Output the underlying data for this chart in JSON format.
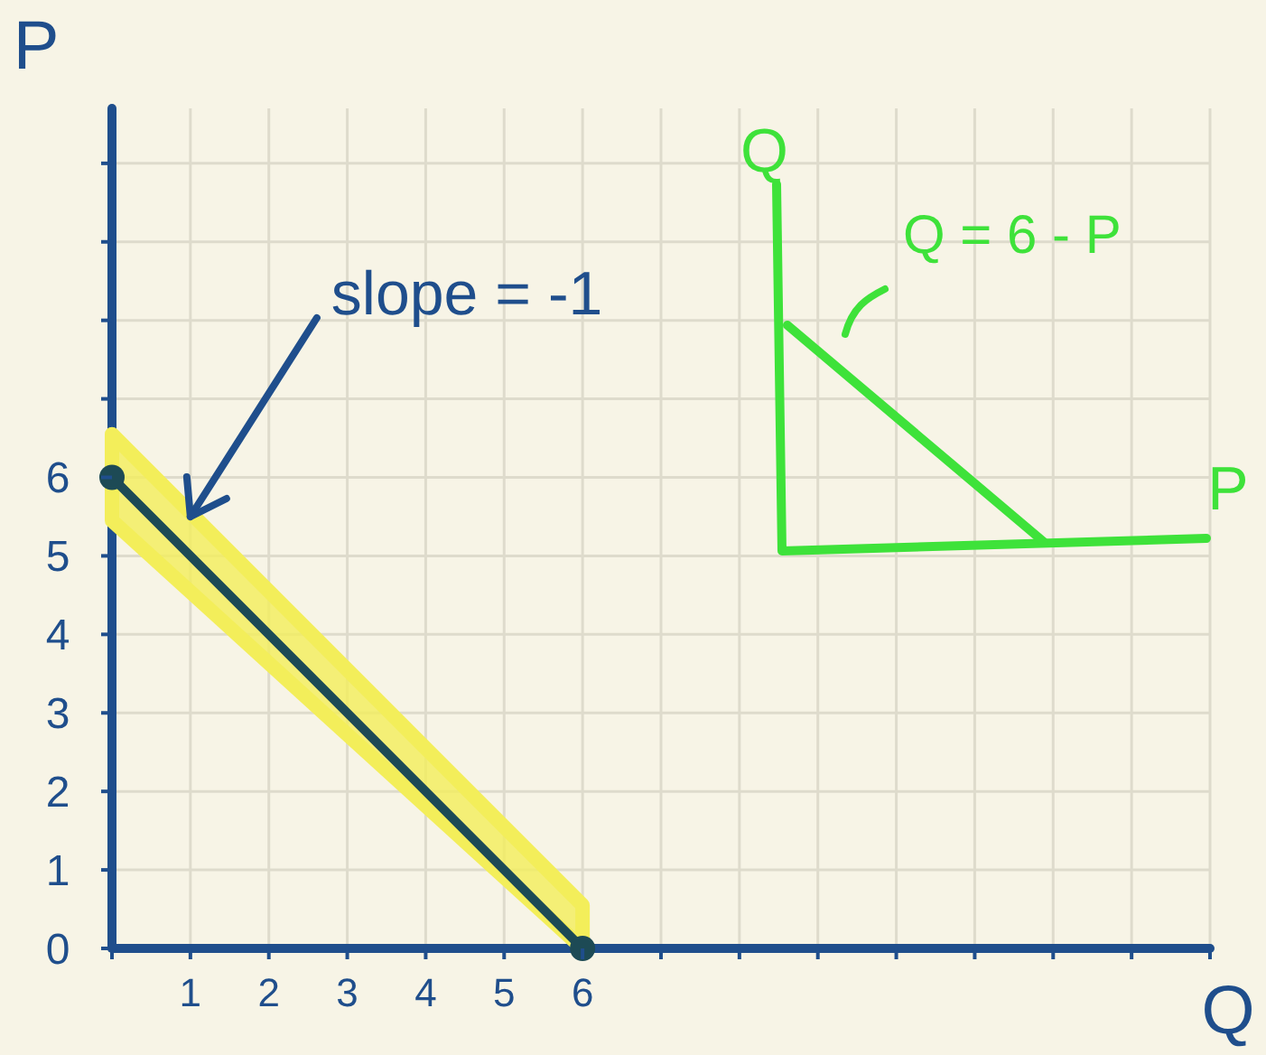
{
  "chart_data": {
    "type": "line",
    "xlabel": "Q",
    "ylabel": "P",
    "x": [
      0,
      6
    ],
    "series": [
      {
        "color": "#1d4a55",
        "values": [
          6,
          0
        ],
        "lower": [
          5.45,
          0
        ],
        "upper": [
          6.55,
          0.55
        ]
      }
    ],
    "xlim": [
      0,
      14
    ],
    "ylim": [
      0,
      10.7
    ],
    "xticks": [
      {
        "value": 0,
        "label": null
      },
      1,
      2,
      3,
      4,
      5,
      6,
      {
        "value": 7,
        "label": null
      },
      {
        "value": 8,
        "label": null
      },
      {
        "value": 9,
        "label": null
      },
      {
        "value": 10,
        "label": null
      },
      {
        "value": 11,
        "label": null
      },
      {
        "value": 12,
        "label": null
      },
      {
        "value": 13,
        "label": null
      },
      {
        "value": 14,
        "label": null
      }
    ],
    "yticks": [
      0,
      1,
      2,
      3,
      4,
      5,
      6,
      {
        "value": 7,
        "label": null
      },
      {
        "value": 8,
        "label": null
      },
      {
        "value": 9,
        "label": null
      },
      {
        "value": 10,
        "label": null
      }
    ],
    "grid": true,
    "marker": "circle",
    "line_style": "solid",
    "annotations": [
      {
        "text": "slope = -1",
        "x": 1,
        "y": 5.5
      },
      "Q = 6 - P",
      "Q",
      "P"
    ]
  }
}
